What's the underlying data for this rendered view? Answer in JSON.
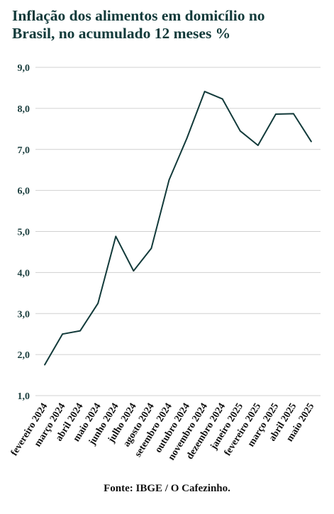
{
  "header": {
    "title_line1": "Inflação dos alimentos em domicílio no",
    "title_line2": "Brasil, no acumulado 12 meses %"
  },
  "footer": {
    "source": "Fonte: IBGE / O Cafezinho."
  },
  "colors": {
    "line": "#123a3a",
    "grid": "#d0d0d0",
    "title": "#123a3a"
  },
  "chart_data": {
    "type": "line",
    "title": "Inflação dos alimentos em domicílio no Brasil, no acumulado 12 meses %",
    "xlabel": "",
    "ylabel": "",
    "categories": [
      "fevereiro 2024",
      "março 2024",
      "abril 2024",
      "maio 2024",
      "junho 2024",
      "julho 2024",
      "agosto 2024",
      "setembro 2024",
      "outubro 2024",
      "novembro 2024",
      "dezembro 2024",
      "janeiro 2025",
      "fevereiro 2025",
      "março 2025",
      "abril 2025",
      "maio 2025"
    ],
    "series": [
      {
        "values": [
          1.75,
          2.5,
          2.58,
          3.25,
          4.88,
          4.04,
          4.59,
          6.26,
          7.27,
          8.41,
          8.23,
          7.45,
          7.1,
          7.86,
          7.87,
          7.19
        ]
      }
    ],
    "yticks": [
      "1,0",
      "2,0",
      "3,0",
      "4,0",
      "5,0",
      "6,0",
      "7,0",
      "8,0",
      "9,0"
    ],
    "ylim": [
      1,
      9
    ],
    "grid": true,
    "legend": "none"
  }
}
